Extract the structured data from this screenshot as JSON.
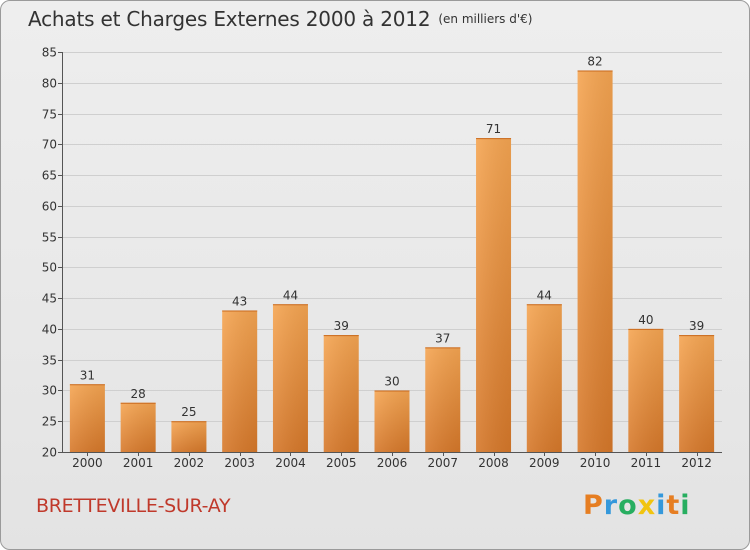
{
  "header": {
    "title": "Achats et Charges Externes 2000 à 2012",
    "subtitle": "(en milliers d'€)"
  },
  "footer": {
    "commune": "BRETTEVILLE-SUR-AY",
    "logo_letters": [
      "P",
      "r",
      "o",
      "x",
      "i",
      "t",
      "i"
    ]
  },
  "colors": {
    "bar": "#f0983a",
    "bar_dark": "#d27222",
    "grid": "#cfcfcf"
  },
  "chart_data": {
    "type": "bar",
    "title": "Achats et Charges Externes 2000 à 2012",
    "subtitle": "(en milliers d'€)",
    "categories": [
      "2000",
      "2001",
      "2002",
      "2003",
      "2004",
      "2005",
      "2006",
      "2007",
      "2008",
      "2009",
      "2010",
      "2011",
      "2012"
    ],
    "values": [
      31,
      28,
      25,
      43,
      44,
      39,
      30,
      37,
      71,
      44,
      82,
      40,
      39
    ],
    "ylim": [
      20,
      85
    ],
    "yticks": [
      20,
      25,
      30,
      35,
      40,
      45,
      50,
      55,
      60,
      65,
      70,
      75,
      80,
      85
    ],
    "xlabel": "",
    "ylabel": "",
    "grid": true
  }
}
